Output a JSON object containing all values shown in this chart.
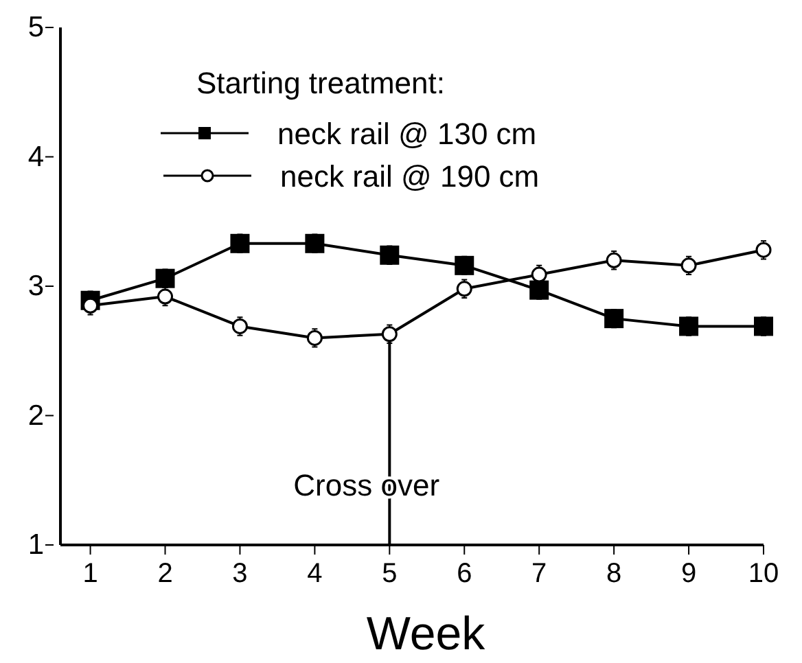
{
  "chart_data": {
    "type": "line",
    "xlabel": "Week",
    "x": [
      1,
      2,
      3,
      4,
      5,
      6,
      7,
      8,
      9,
      10
    ],
    "xlim": [
      0.6,
      10
    ],
    "xticks": [
      1,
      2,
      3,
      4,
      5,
      6,
      7,
      8,
      9,
      10
    ],
    "ylim": [
      1,
      5
    ],
    "yticks": [
      1,
      2,
      3,
      4,
      5
    ],
    "grid": false,
    "legend": "top",
    "legend_title": "Starting treatment:",
    "series": [
      {
        "name": "neck rail @ 130 cm",
        "color": "#000000",
        "marker": "square",
        "values": [
          2.89,
          3.06,
          3.33,
          3.33,
          3.24,
          3.16,
          2.97,
          2.75,
          2.69,
          2.69
        ],
        "errors": [
          0.07,
          0.07,
          0.07,
          0.07,
          0.07,
          0.07,
          0.07,
          0.07,
          0.07,
          0.07
        ]
      },
      {
        "name": "neck rail @ 190 cm",
        "color": "#000000",
        "marker": "circle",
        "values": [
          2.85,
          2.92,
          2.69,
          2.6,
          2.63,
          2.98,
          3.09,
          3.2,
          3.16,
          3.28
        ],
        "errors": [
          0.07,
          0.07,
          0.07,
          0.07,
          0.07,
          0.07,
          0.07,
          0.07,
          0.07,
          0.07
        ]
      }
    ],
    "ref_lines": [
      {
        "axis": "x",
        "value": 5,
        "label": "Cross over",
        "color": "#000000"
      }
    ]
  }
}
